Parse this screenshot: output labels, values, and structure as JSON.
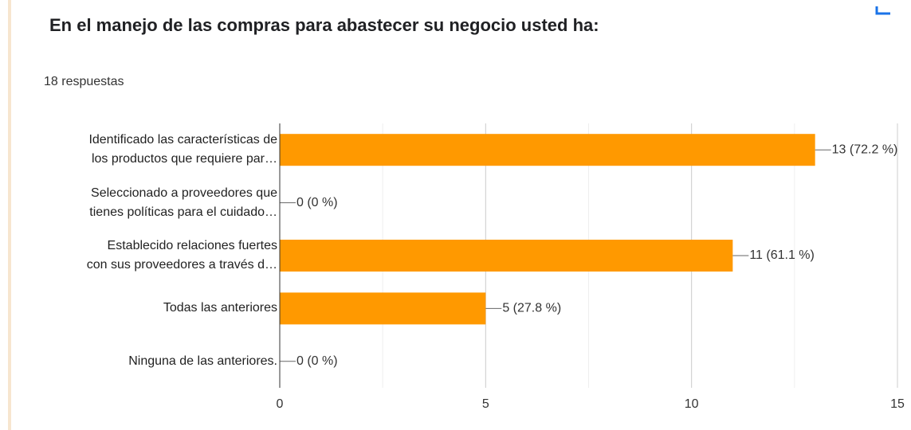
{
  "chart_data": {
    "type": "barh",
    "title": "En el manejo de las compras para abastecer su negocio usted ha:",
    "subtitle": "18 respuestas",
    "categories": [
      "Identificado las características de\nlos productos que requiere par…",
      "Seleccionado a proveedores que\ntienes políticas para el cuidado…",
      "Establecido relaciones fuertes\ncon sus proveedores a través d…",
      "Todas las anteriores",
      "Ninguna de las anteriores."
    ],
    "values": [
      13,
      0,
      11,
      5,
      0
    ],
    "value_labels": [
      "13 (72.2 %)",
      "0 (0 %)",
      "11 (61.1 %)",
      "5 (27.8 %)",
      "0 (0 %)"
    ],
    "color": "#ff9900",
    "xlim": [
      0,
      15
    ],
    "xticks": [
      0,
      5,
      10,
      15
    ],
    "minor_xticks": [
      2.5,
      7.5,
      12.5
    ],
    "grid": true
  }
}
